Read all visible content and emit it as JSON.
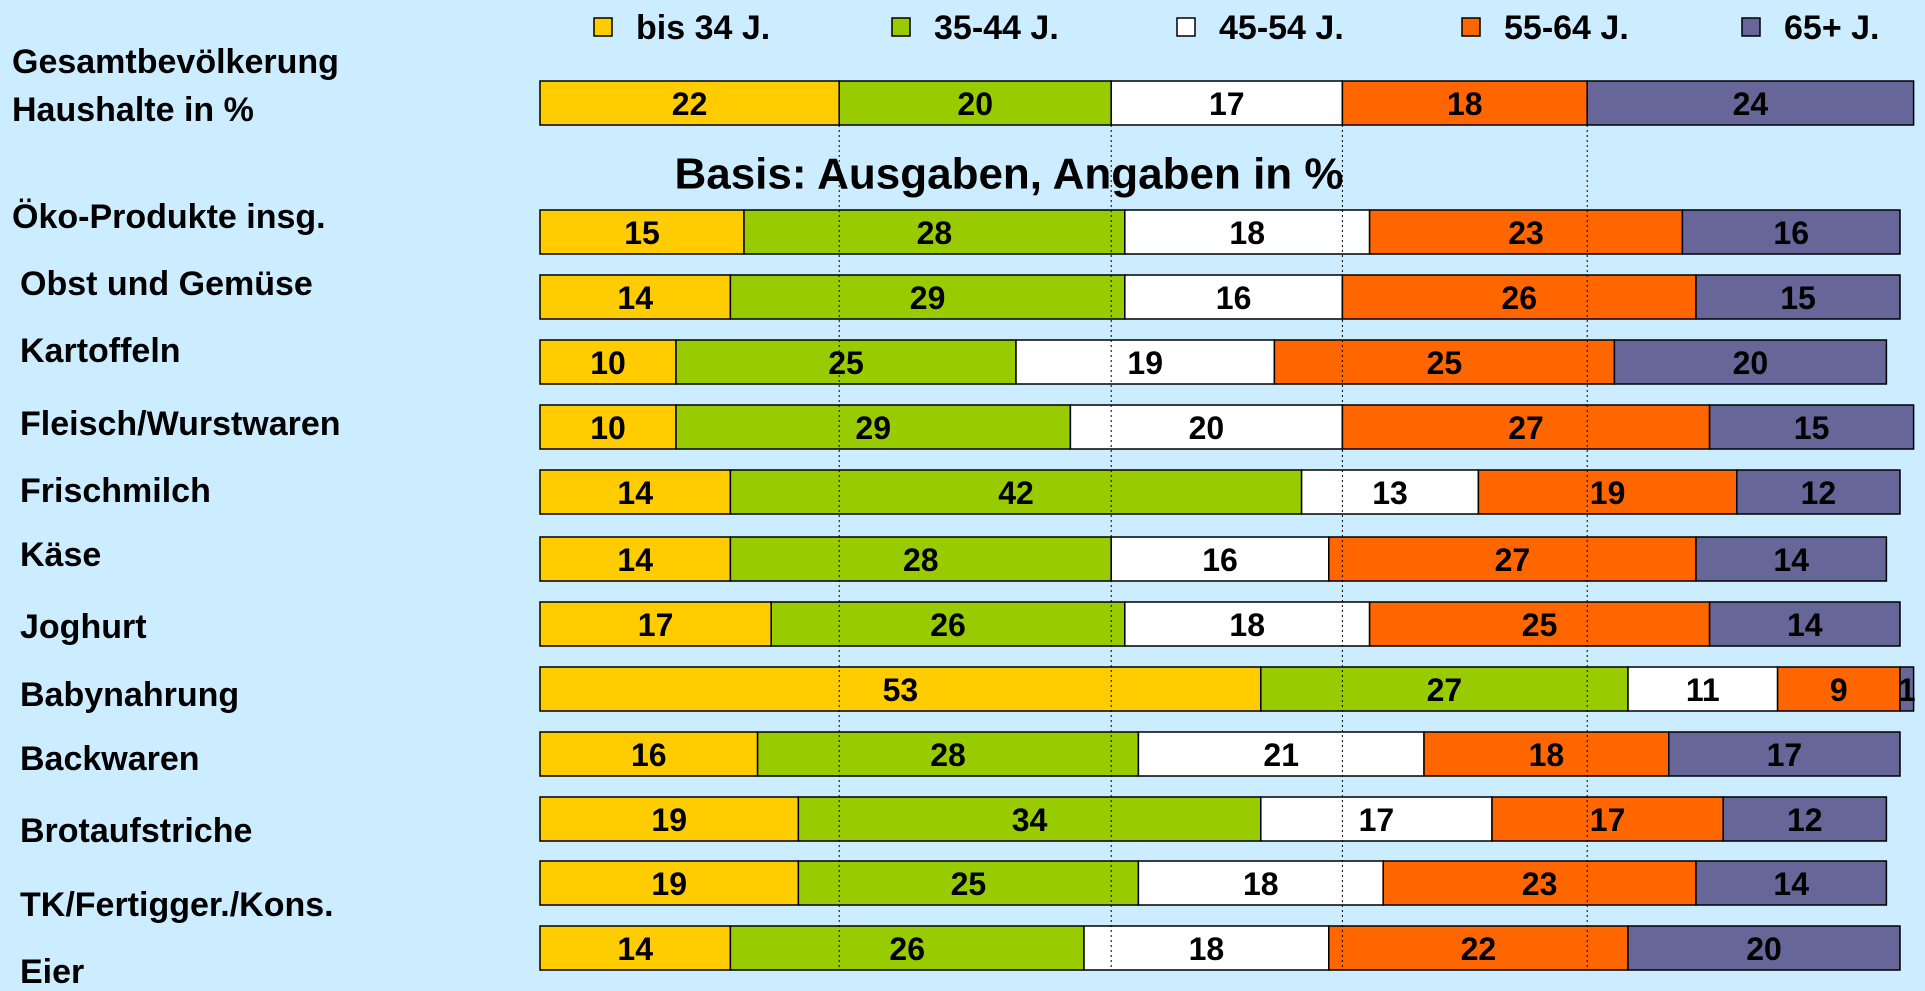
{
  "chart_data": {
    "type": "stacked_barh",
    "subtitle": "Basis: Ausgaben, Angaben in %",
    "categories": [
      "Gesamtbevölkerung\nHaushalte in %",
      "Öko-Produkte insg.",
      "Obst und Gemüse",
      "Kartoffeln",
      "Fleisch/Wurstwaren",
      "Frischmilch",
      "Käse",
      "Joghurt",
      "Babynahrung",
      "Backwaren",
      "Brotaufstriche",
      "TK/Fertigger./Kons.",
      "Eier"
    ],
    "series": [
      {
        "name": "bis 34 J.",
        "color": "#ffcc00",
        "values": [
          22,
          15,
          14,
          10,
          10,
          14,
          14,
          17,
          53,
          16,
          19,
          19,
          14
        ]
      },
      {
        "name": "35-44 J.",
        "color": "#99cc00",
        "values": [
          20,
          28,
          29,
          25,
          29,
          42,
          28,
          26,
          27,
          28,
          34,
          25,
          26
        ]
      },
      {
        "name": "45-54 J.",
        "color": "#ffffff",
        "values": [
          17,
          18,
          16,
          19,
          20,
          13,
          16,
          18,
          11,
          21,
          17,
          18,
          18
        ]
      },
      {
        "name": "55-64 J.",
        "color": "#ff6600",
        "values": [
          18,
          23,
          26,
          25,
          27,
          19,
          27,
          25,
          9,
          18,
          17,
          23,
          22
        ]
      },
      {
        "name": "65+ J.",
        "color": "#666699",
        "values": [
          24,
          16,
          15,
          20,
          15,
          12,
          14,
          14,
          1,
          17,
          12,
          14,
          20
        ]
      }
    ],
    "xlim": [
      0,
      100
    ],
    "legend": "top"
  }
}
